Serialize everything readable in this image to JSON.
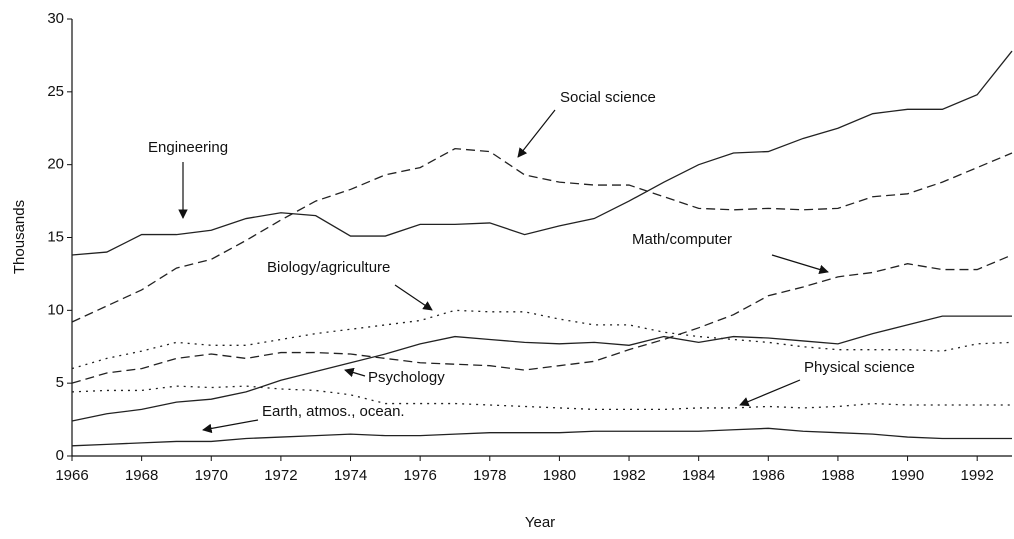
{
  "chart_data": {
    "type": "line",
    "x_label": "Year",
    "y_label": "Thousands",
    "x": [
      1966,
      1967,
      1968,
      1969,
      1970,
      1971,
      1972,
      1973,
      1974,
      1975,
      1976,
      1977,
      1978,
      1979,
      1980,
      1981,
      1982,
      1983,
      1984,
      1985,
      1986,
      1987,
      1988,
      1989,
      1990,
      1991,
      1992,
      1993
    ],
    "xlim": [
      1966,
      1993
    ],
    "xticks": [
      1966,
      1968,
      1970,
      1972,
      1974,
      1976,
      1978,
      1980,
      1982,
      1984,
      1986,
      1988,
      1990,
      1992
    ],
    "ylim": [
      0,
      30
    ],
    "yticks": [
      0,
      5,
      10,
      15,
      20,
      25,
      30
    ],
    "grid": false,
    "series": [
      {
        "name": "Engineering",
        "color": "#222",
        "dash": "solid",
        "values": [
          13.8,
          14.0,
          15.2,
          15.2,
          15.5,
          16.3,
          16.7,
          16.5,
          15.1,
          15.1,
          15.9,
          15.9,
          16.0,
          15.2,
          15.8,
          16.3,
          17.5,
          18.8,
          20.0,
          20.8,
          20.9,
          21.8,
          22.5,
          23.5,
          23.8,
          23.8,
          24.8,
          27.8
        ]
      },
      {
        "name": "Social science",
        "color": "#222",
        "dash": "dashed",
        "values": [
          9.2,
          10.3,
          11.4,
          12.9,
          13.5,
          14.8,
          16.2,
          17.5,
          18.3,
          19.3,
          19.8,
          21.1,
          20.9,
          19.3,
          18.8,
          18.6,
          18.6,
          17.8,
          17.0,
          16.9,
          17.0,
          16.9,
          17.0,
          17.8,
          18.0,
          18.8,
          19.8,
          20.8
        ]
      },
      {
        "name": "Math/computer",
        "color": "#222",
        "dash": "dashed",
        "values": [
          5.0,
          5.7,
          6.0,
          6.7,
          7.0,
          6.7,
          7.1,
          7.1,
          7.0,
          6.7,
          6.4,
          6.3,
          6.2,
          5.9,
          6.2,
          6.5,
          7.3,
          8.0,
          8.8,
          9.7,
          11.0,
          11.6,
          12.3,
          12.6,
          13.2,
          12.8,
          12.8,
          13.8
        ]
      },
      {
        "name": "Biology/agriculture",
        "color": "#222",
        "dash": "dotted",
        "values": [
          6.0,
          6.7,
          7.2,
          7.8,
          7.6,
          7.6,
          8.0,
          8.4,
          8.7,
          9.0,
          9.3,
          10.0,
          9.9,
          9.9,
          9.4,
          9.0,
          9.0,
          8.5,
          8.2,
          8.0,
          7.8,
          7.5,
          7.3,
          7.3,
          7.3,
          7.2,
          7.7,
          7.8
        ]
      },
      {
        "name": "Psychology",
        "color": "#222",
        "dash": "solid",
        "values": [
          2.4,
          2.9,
          3.2,
          3.7,
          3.9,
          4.4,
          5.2,
          5.8,
          6.4,
          7.0,
          7.7,
          8.2,
          8.0,
          7.8,
          7.7,
          7.8,
          7.6,
          8.2,
          7.8,
          8.2,
          8.1,
          7.9,
          7.7,
          8.4,
          9.0,
          9.6,
          9.6,
          9.6
        ]
      },
      {
        "name": "Physical science",
        "color": "#222",
        "dash": "dotted",
        "values": [
          4.4,
          4.5,
          4.5,
          4.8,
          4.7,
          4.8,
          4.6,
          4.5,
          4.2,
          3.6,
          3.6,
          3.6,
          3.5,
          3.4,
          3.3,
          3.2,
          3.2,
          3.2,
          3.3,
          3.3,
          3.4,
          3.3,
          3.4,
          3.6,
          3.5,
          3.5,
          3.5,
          3.5
        ]
      },
      {
        "name": "Earth, atmos., ocean.",
        "color": "#222",
        "dash": "solid",
        "values": [
          0.7,
          0.8,
          0.9,
          1.0,
          1.0,
          1.2,
          1.3,
          1.4,
          1.5,
          1.4,
          1.4,
          1.5,
          1.6,
          1.6,
          1.6,
          1.7,
          1.7,
          1.7,
          1.7,
          1.8,
          1.9,
          1.7,
          1.6,
          1.5,
          1.3,
          1.2,
          1.2,
          1.2
        ]
      }
    ]
  }
}
